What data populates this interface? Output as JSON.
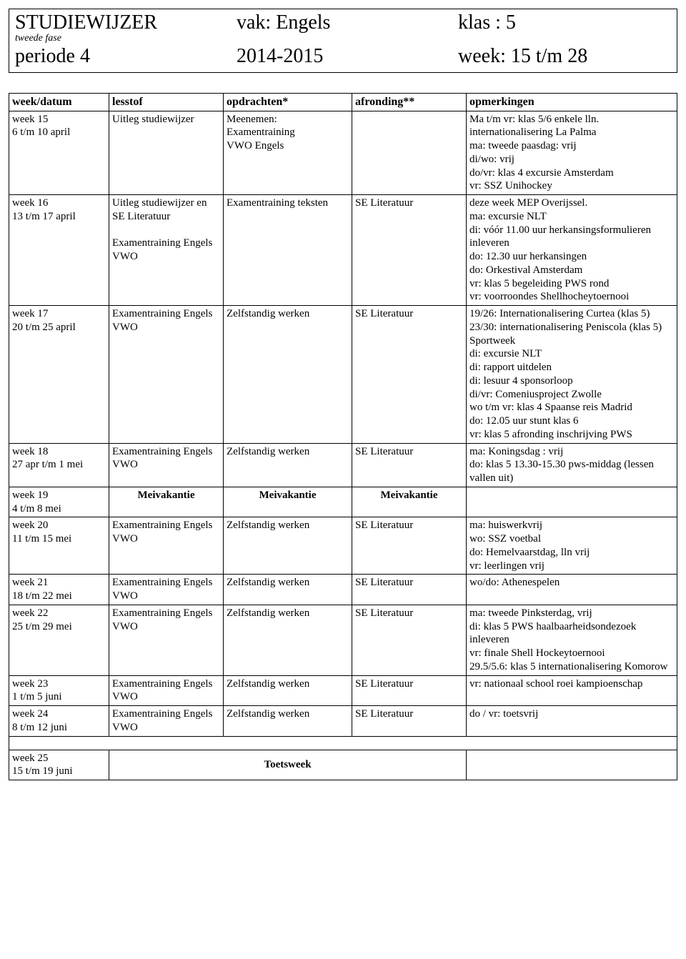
{
  "header": {
    "title": "STUDIEWIJZER",
    "vak_label": "vak:",
    "vak_value": "Engels",
    "klas_label": "klas :",
    "klas_value": "5",
    "subtitle": "tweede fase",
    "periode": "periode 4",
    "year": "2014-2015",
    "week_label": "week:",
    "week_value": "15 t/m 28"
  },
  "columns": [
    "week/datum",
    "lesstof",
    "opdrachten*",
    "afronding**",
    "opmerkingen"
  ],
  "rows": [
    {
      "week_name": "week 15",
      "week_dates": "6 t/m 10 april",
      "lesstof": "Uitleg studiewijzer",
      "opdrachten": "Meenemen:\nExamentraining\nVWO Engels",
      "afronding": "",
      "opm": "Ma t/m vr: klas 5/6 enkele lln. internationalisering La Palma\nma: tweede paasdag: vrij\ndi/wo: vrij\ndo/vr: klas 4 excursie Amsterdam\n vr: SSZ Unihockey"
    },
    {
      "week_name": "week 16",
      "week_dates": "13 t/m 17 april",
      "lesstof": "Uitleg studiewijzer en\nSE Literatuur\n\nExamentraining Engels VWO",
      "opdrachten": "Examentraining teksten",
      "afronding": "SE Literatuur",
      "opm": "deze week MEP Overijssel.\nma: excursie NLT\ndi: vóór 11.00 uur herkansingsformulieren inleveren\ndo: 12.30 uur herkansingen\ndo: Orkestival Amsterdam\nvr: klas 5 begeleiding PWS rond\nvr: voorroondes Shellhocheytoernooi"
    },
    {
      "week_name": "week 17",
      "week_dates": "20 t/m 25 april",
      "lesstof": "Examentraining Engels VWO",
      "opdrachten": "Zelfstandig werken",
      "afronding": "SE Literatuur",
      "opm": "19/26: Internationalisering Curtea (klas 5)\n23/30: internationalisering Peniscola (klas 5)\nSportweek\ndi: excursie NLT\ndi: rapport uitdelen\ndi: lesuur 4 sponsorloop\ndi/vr: Comeniusproject Zwolle\nwo t/m vr: klas 4 Spaanse reis Madrid\ndo: 12.05 uur stunt klas 6\nvr: klas 5 afronding inschrijving PWS"
    },
    {
      "week_name": "week 18",
      "week_dates": "27 apr t/m 1 mei",
      "lesstof": "Examentraining Engels VWO",
      "opdrachten": "Zelfstandig werken",
      "afronding": "SE Literatuur",
      "opm": "ma: Koningsdag : vrij\ndo: klas 5 13.30-15.30 pws-middag (lessen vallen uit)"
    },
    {
      "week_name": "week 19",
      "week_dates": "4 t/m 8 mei",
      "lesstof": "Meivakantie",
      "opdrachten": "Meivakantie",
      "afronding": "Meivakantie",
      "opm": "",
      "bold_center": true
    },
    {
      "week_name": "week 20",
      "week_dates": "11 t/m 15 mei",
      "lesstof": "Examentraining Engels VWO",
      "opdrachten": "Zelfstandig werken",
      "afronding": "SE Literatuur",
      "opm": "ma: huiswerkvrij\nwo: SSZ voetbal\ndo: Hemelvaarstdag, lln vrij\nvr: leerlingen vrij"
    },
    {
      "week_name": "week 21",
      "week_dates": "18 t/m 22 mei",
      "lesstof": "Examentraining Engels VWO",
      "opdrachten": "Zelfstandig werken",
      "afronding": "SE Literatuur",
      "opm": "wo/do: Athenespelen"
    },
    {
      "week_name": "week 22",
      "week_dates": "25 t/m 29 mei",
      "lesstof": "Examentraining Engels VWO",
      "opdrachten": "Zelfstandig werken",
      "afronding": "SE Literatuur",
      "opm": "ma: tweede Pinksterdag, vrij\ndi: klas 5 PWS haalbaarheidsondezoek inleveren\nvr: finale Shell Hockeytoernooi\n29.5/5.6: klas 5 internationalisering Komorow"
    },
    {
      "week_name": "week 23",
      "week_dates": "1 t/m 5 juni",
      "lesstof": "Examentraining Engels VWO",
      "opdrachten": "Zelfstandig werken",
      "afronding": "SE Literatuur",
      "opm": "vr: nationaal school roei kampioenschap"
    },
    {
      "week_name": "week 24",
      "week_dates": "8 t/m 12 juni",
      "lesstof": "Examentraining Engels VWO",
      "opdrachten": "Zelfstandig werken",
      "afronding": "SE Literatuur",
      "opm": "do / vr: toetsvrij"
    }
  ],
  "toetsweek_row": {
    "week_name": "week 25",
    "week_dates": "15 t/m 19 juni",
    "label": "Toetsweek"
  }
}
